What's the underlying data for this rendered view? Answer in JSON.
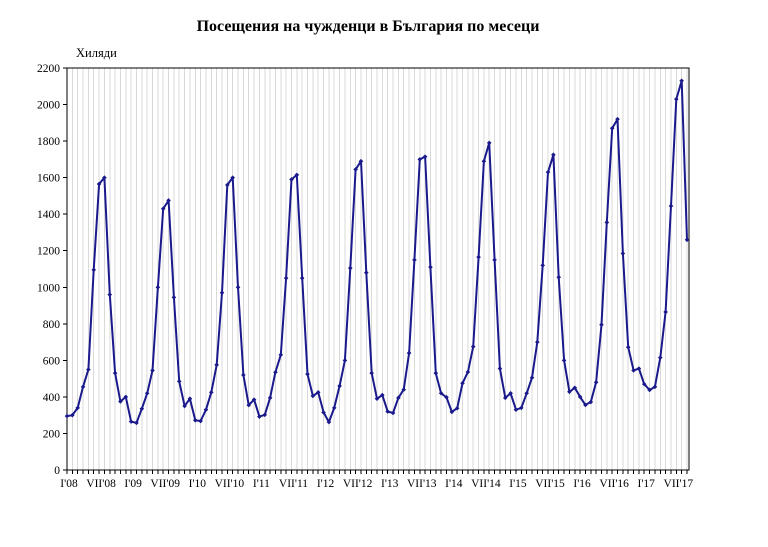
{
  "title": "Посещения на чужденци в България по месеци",
  "unit_label": "Хиляди",
  "chart_data": {
    "type": "line",
    "title": "Посещения на чужденци в България по месеци",
    "ylabel": "Хиляди",
    "xlabel": "",
    "ylim": [
      0,
      2200
    ],
    "y_tick_step": 200,
    "y_tick_labels": [
      "0",
      "200",
      "400",
      "600",
      "800",
      "1000",
      "1200",
      "1400",
      "1600",
      "1800",
      "2000",
      "2200"
    ],
    "x_tick_labels": [
      "I'08",
      "VII'08",
      "I'09",
      "VII'09",
      "I'10",
      "VII'10",
      "I'11",
      "VII'11",
      "I'12",
      "VII'12",
      "I'13",
      "VII'13",
      "I'14",
      "VII'14",
      "I'15",
      "VII'15",
      "I'16",
      "VII'16",
      "I'17",
      "VII'17"
    ],
    "x_label_every_months": 6,
    "grid": "vertical-monthly-light-gray",
    "legend": "none",
    "markers": "small-diamond",
    "colors": {
      "line": "#1a1a8c",
      "grid": "#d9d9d9",
      "axis": "#000000",
      "background": "#ffffff"
    },
    "values": [
      295,
      300,
      340,
      455,
      550,
      1095,
      1565,
      1600,
      960,
      530,
      375,
      400,
      265,
      258,
      335,
      420,
      545,
      1000,
      1430,
      1475,
      945,
      485,
      350,
      390,
      272,
      268,
      330,
      425,
      575,
      970,
      1560,
      1600,
      1000,
      520,
      355,
      385,
      292,
      302,
      395,
      535,
      630,
      1050,
      1590,
      1615,
      1050,
      525,
      405,
      425,
      315,
      262,
      340,
      460,
      600,
      1105,
      1645,
      1690,
      1080,
      530,
      390,
      410,
      320,
      312,
      395,
      440,
      640,
      1150,
      1700,
      1715,
      1110,
      530,
      420,
      398,
      318,
      338,
      475,
      536,
      675,
      1165,
      1690,
      1790,
      1150,
      555,
      395,
      420,
      330,
      340,
      420,
      505,
      700,
      1120,
      1630,
      1725,
      1055,
      600,
      428,
      450,
      400,
      356,
      372,
      480,
      795,
      1355,
      1870,
      1920,
      1185,
      672,
      545,
      555,
      470,
      438,
      455,
      615,
      865,
      1445,
      2030,
      2130,
      1260
    ]
  }
}
